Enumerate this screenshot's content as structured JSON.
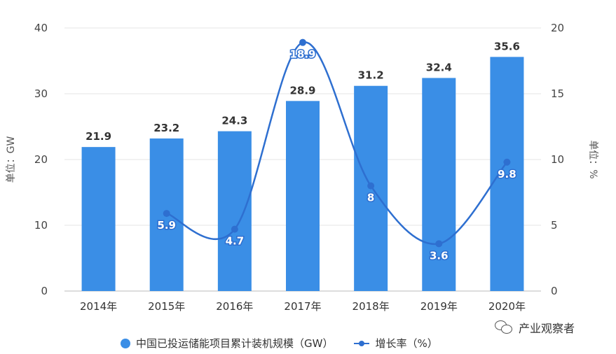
{
  "chart_data": {
    "type": "bar",
    "categories": [
      "2014年",
      "2015年",
      "2016年",
      "2017年",
      "2018年",
      "2019年",
      "2020年"
    ],
    "series": [
      {
        "name": "中国已投运储能项目累计装机规模（GW）",
        "type": "bar",
        "axis": "left",
        "values": [
          21.9,
          23.2,
          24.3,
          28.9,
          31.2,
          32.4,
          35.6
        ],
        "labels": [
          "21.9",
          "23.2",
          "24.3",
          "28.9",
          "31.2",
          "32.4",
          "35.6"
        ]
      },
      {
        "name": "增长率（%）",
        "type": "line",
        "axis": "right",
        "values": [
          null,
          5.9,
          4.7,
          18.9,
          8,
          3.6,
          9.8
        ],
        "labels": [
          "",
          "5.9",
          "4.7",
          "18.9",
          "8",
          "3.6",
          "9.8"
        ]
      }
    ],
    "ylabel": "单位：GW",
    "y2label": "单位：%",
    "ylim": [
      0,
      40
    ],
    "y2lim": [
      0,
      20
    ],
    "yticks": [
      "0",
      "10",
      "20",
      "30",
      "40"
    ],
    "y2ticks": [
      "0",
      "5",
      "10",
      "15",
      "20"
    ],
    "grid": true,
    "legend_position": "bottom",
    "colors": {
      "bar": "#3a8ee6",
      "line": "#2e6fd0"
    }
  },
  "watermark": {
    "text": "产业观察者",
    "icon": "wechat-icon"
  }
}
